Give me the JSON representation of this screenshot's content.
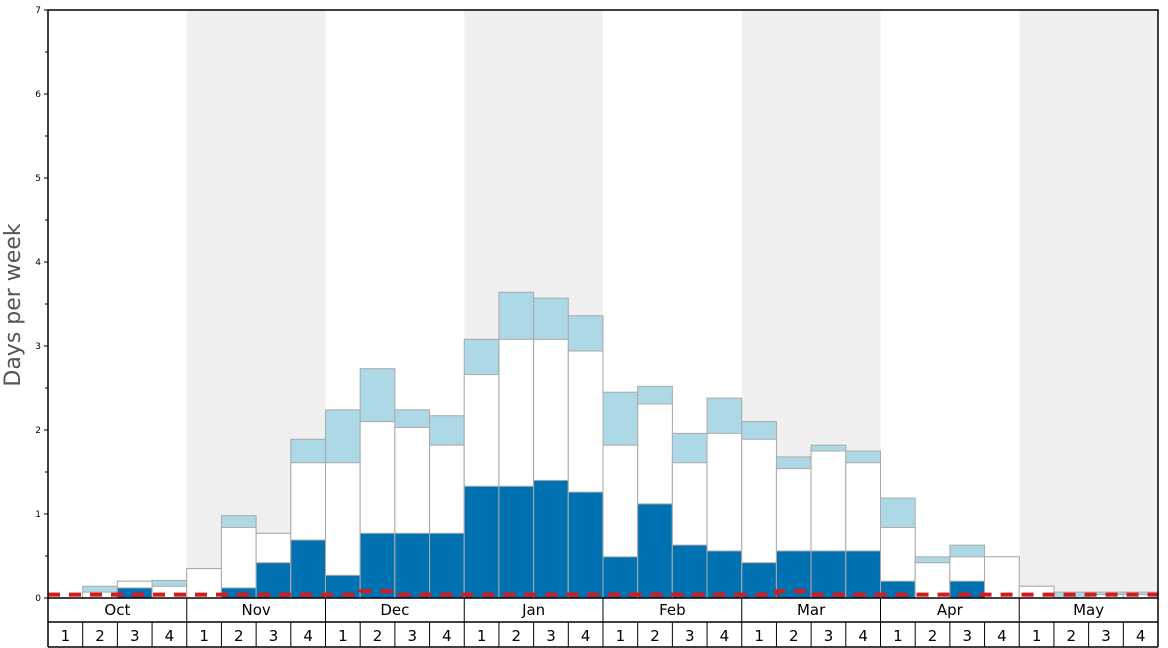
{
  "chart_data": {
    "type": "bar",
    "stacked": true,
    "title": "",
    "xlabel": "",
    "ylabel": "Days per week",
    "ylim": [
      0,
      7
    ],
    "y_ticks": [
      "0",
      "1",
      "2",
      "3",
      "4",
      "5",
      "6",
      "7"
    ],
    "months": [
      "Oct",
      "Nov",
      "Dec",
      "Jan",
      "Feb",
      "Mar",
      "Apr",
      "May"
    ],
    "week_labels": [
      "1",
      "2",
      "3",
      "4"
    ],
    "shaded_months": [
      "Nov",
      "Jan",
      "Mar",
      "May"
    ],
    "colors": {
      "dark_segment": "#0072b2",
      "white_segment": "#ffffff",
      "light_segment": "#add8e6",
      "bar_stroke": "#aaaaaa",
      "dashed_line": "#d7191c",
      "shade": "#f0f0f0"
    },
    "stack_totals": {
      "dark": [
        0,
        0,
        0.12,
        0,
        0,
        0.12,
        0.42,
        0.69,
        0.27,
        0.77,
        0.77,
        0.77,
        1.33,
        1.33,
        1.4,
        1.26,
        0.49,
        1.12,
        0.63,
        0.56,
        0.42,
        0.56,
        0.56,
        0.56,
        0.2,
        0,
        0.2,
        0,
        0,
        0,
        0,
        0
      ],
      "white": [
        0,
        0.07,
        0.2,
        0.14,
        0.35,
        0.84,
        0.77,
        1.61,
        1.61,
        2.1,
        2.03,
        1.82,
        2.66,
        3.08,
        3.08,
        2.94,
        1.82,
        2.31,
        1.61,
        1.96,
        1.89,
        1.54,
        1.75,
        1.61,
        0.84,
        0.42,
        0.49,
        0.49,
        0.14,
        0,
        0.04,
        0.04
      ],
      "light": [
        0,
        0.14,
        0.2,
        0.21,
        0.35,
        0.98,
        0.77,
        1.89,
        2.24,
        2.73,
        2.24,
        2.17,
        3.08,
        3.64,
        3.57,
        3.36,
        2.45,
        2.52,
        1.96,
        2.38,
        2.1,
        1.68,
        1.82,
        1.75,
        1.19,
        0.49,
        0.63,
        0.49,
        0.14,
        0.07,
        0.07,
        0.07
      ]
    },
    "dashed_line_values": [
      0.04,
      0.04,
      0.04,
      0.04,
      0.04,
      0.04,
      0.04,
      0.04,
      0.04,
      0.08,
      0.04,
      0.04,
      0.04,
      0.04,
      0.04,
      0.04,
      0.04,
      0.04,
      0.04,
      0.04,
      0.04,
      0.08,
      0.04,
      0.04,
      0.04,
      0.04,
      0.04,
      0.04,
      0.04,
      0.04,
      0.04,
      0.04
    ]
  }
}
